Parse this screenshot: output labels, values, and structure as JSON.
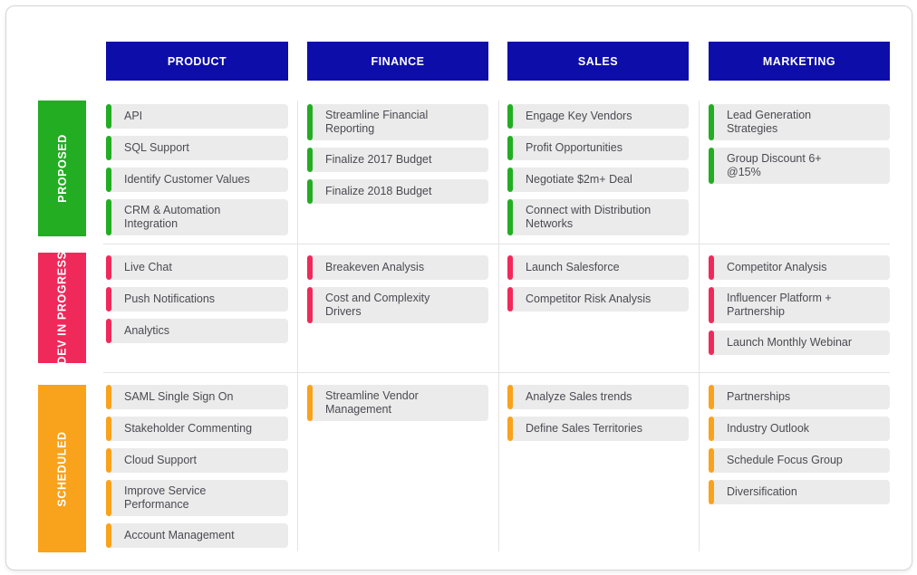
{
  "board": {
    "colors": {
      "header_bg": "#0D0DA9",
      "header_text": "#FFFFFF",
      "proposed_accent": "#22AD22",
      "dev_in_progress_accent": "#F0295B",
      "scheduled_accent": "#F9A21B",
      "card_bg": "#EBEBEB",
      "card_text": "#4A4A52",
      "grid_line": "#E4E4E4",
      "border": "#D5D5D5"
    },
    "row_labels": [
      {
        "id": "proposed",
        "label": "PROPOSED",
        "color": "#22AD22"
      },
      {
        "id": "dev-in-progress",
        "label": "DEV IN PROGRESS",
        "color": "#F0295B"
      },
      {
        "id": "scheduled",
        "label": "SCHEDULED",
        "color": "#F9A21B"
      }
    ],
    "columns": [
      {
        "label": "PRODUCT",
        "rows": [
          [
            "API",
            "SQL Support",
            "Identify Customer Values",
            "CRM & Automation\nIntegration"
          ],
          [
            "Live Chat",
            "Push Notifications",
            "Analytics"
          ],
          [
            "SAML Single Sign On",
            "Stakeholder Commenting",
            "Cloud Support",
            "Improve Service\nPerformance",
            "Account Management"
          ]
        ]
      },
      {
        "label": "FINANCE",
        "rows": [
          [
            "Streamline Financial\nReporting",
            "Finalize 2017 Budget",
            "Finalize 2018 Budget"
          ],
          [
            "Breakeven Analysis",
            "Cost and Complexity\nDrivers"
          ],
          [
            "Streamline Vendor\nManagement"
          ]
        ]
      },
      {
        "label": "SALES",
        "rows": [
          [
            "Engage Key Vendors",
            "Profit Opportunities",
            "Negotiate $2m+ Deal",
            "Connect with Distribution\nNetworks"
          ],
          [
            "Launch Salesforce",
            "Competitor Risk Analysis"
          ],
          [
            "Analyze Sales trends",
            "Define Sales Territories"
          ]
        ]
      },
      {
        "label": "MARKETING",
        "rows": [
          [
            "Lead Generation\nStrategies",
            "Group Discount 6+\n@15%"
          ],
          [
            "Competitor Analysis",
            "Influencer Platform +\nPartnership",
            "Launch Monthly Webinar"
          ],
          [
            "Partnerships",
            "Industry Outlook",
            "Schedule Focus Group",
            "Diversification"
          ]
        ]
      }
    ]
  }
}
